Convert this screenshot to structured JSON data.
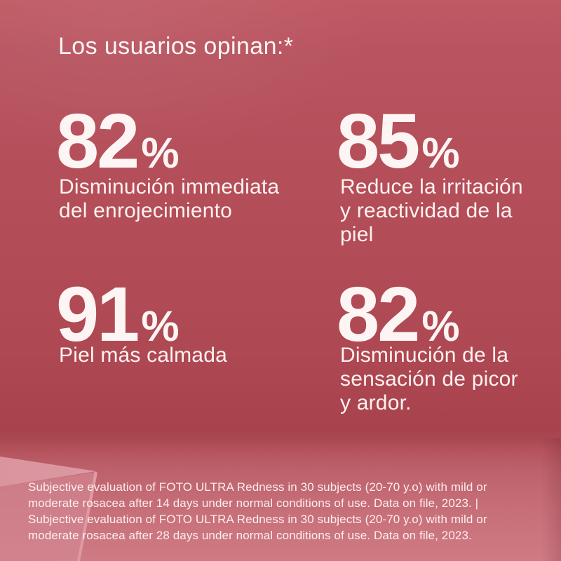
{
  "header": {
    "title": "Los usuarios opinan:*"
  },
  "stats": [
    {
      "value": "82",
      "unit": "%",
      "label": "Disminución immediata\ndel enrojecimiento"
    },
    {
      "value": "85",
      "unit": "%",
      "label": "Reduce la irritación\ny reactividad de la\npiel"
    },
    {
      "value": "91",
      "unit": "%",
      "label": "Piel más calmada"
    },
    {
      "value": "82",
      "unit": "%",
      "label": "Disminución de la\nsensación de picor\ny ardor."
    }
  ],
  "footnote": {
    "text": "Subjective evaluation of FOTO ULTRA Redness in 30 subjects (20-70 y.o) with mild or\nmoderate rosacea after 14 days under normal conditions of use. Data on file, 2023. |\nSubjective evaluation of FOTO ULTRA Redness in 30 subjects (20-70 y.o) with mild or\nmoderate rosacea after 28 days under normal conditions of use. Data on file, 2023."
  },
  "colors": {
    "wall": "#b34d57",
    "wall_top": "#c05a64",
    "floor": "#cf7b84",
    "podium_top": "#e3a0a9",
    "podium_front": "#d0818b",
    "text": "#fdf5f4"
  },
  "chart_data": {
    "type": "table",
    "title": "Los usuarios opinan:*",
    "categories": [
      "Disminución immediata del enrojecimiento",
      "Reduce la irritación y reactividad de la piel",
      "Piel más calmada",
      "Disminución de la sensación de picor y ardor."
    ],
    "values": [
      82,
      85,
      91,
      82
    ],
    "unit": "%",
    "notes": "Subjective evaluation of FOTO ULTRA Redness in 30 subjects (20-70 y.o) with mild or moderate rosacea after 14 days (first two stats context) and after 28 days under normal conditions of use. Data on file, 2023.",
    "layout": "2x2 grid of big-number stat tiles on rose background"
  }
}
